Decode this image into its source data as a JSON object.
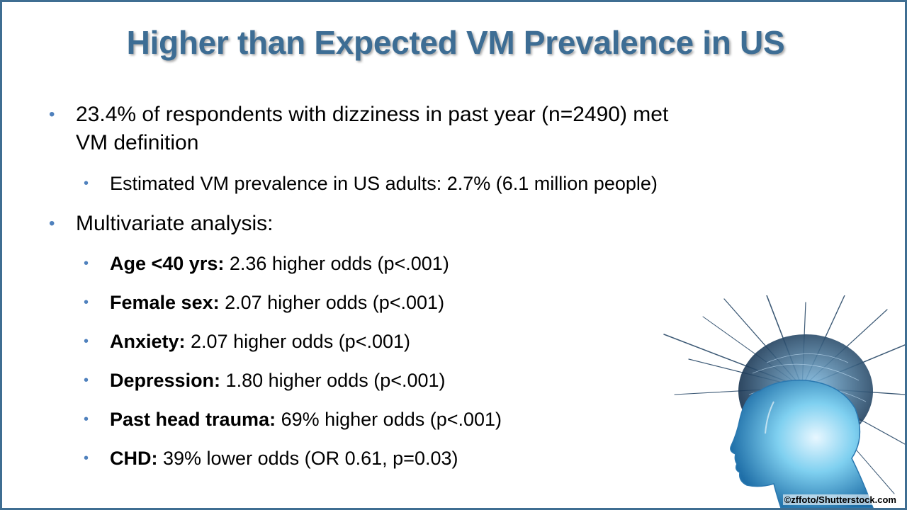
{
  "title": "Higher than Expected VM Prevalence in US",
  "bullets": [
    {
      "text_line1": "23.4% of respondents with dizziness in past year (n=2490) met",
      "text_line2": "VM definition"
    },
    {
      "text": "Estimated VM prevalence in US adults: 2.7% (6.1 million people)"
    },
    {
      "text": "Multivariate analysis:"
    }
  ],
  "factors": [
    {
      "label": "Age <40 yrs:",
      "detail": " 2.36 higher odds (p<.001)"
    },
    {
      "label": "Female sex:",
      "detail": " 2.07 higher odds (p<.001)"
    },
    {
      "label": "Anxiety:",
      "detail": " 2.07 higher odds (p<.001)"
    },
    {
      "label": "Depression:",
      "detail": " 1.80 higher odds (p<.001)"
    },
    {
      "label": "Past head trauma:",
      "detail": " 69% higher odds (p<.001)"
    },
    {
      "label": "CHD:",
      "detail": " 39% lower odds (OR 0.61, p=0.03)"
    }
  ],
  "credit": "©zffoto/Shutterstock.com",
  "colors": {
    "title": "#3d6d94",
    "bullet": "#4f81bd",
    "border": "#3f6e92"
  },
  "image": {
    "icon": "head-with-neural-spikes-icon"
  }
}
